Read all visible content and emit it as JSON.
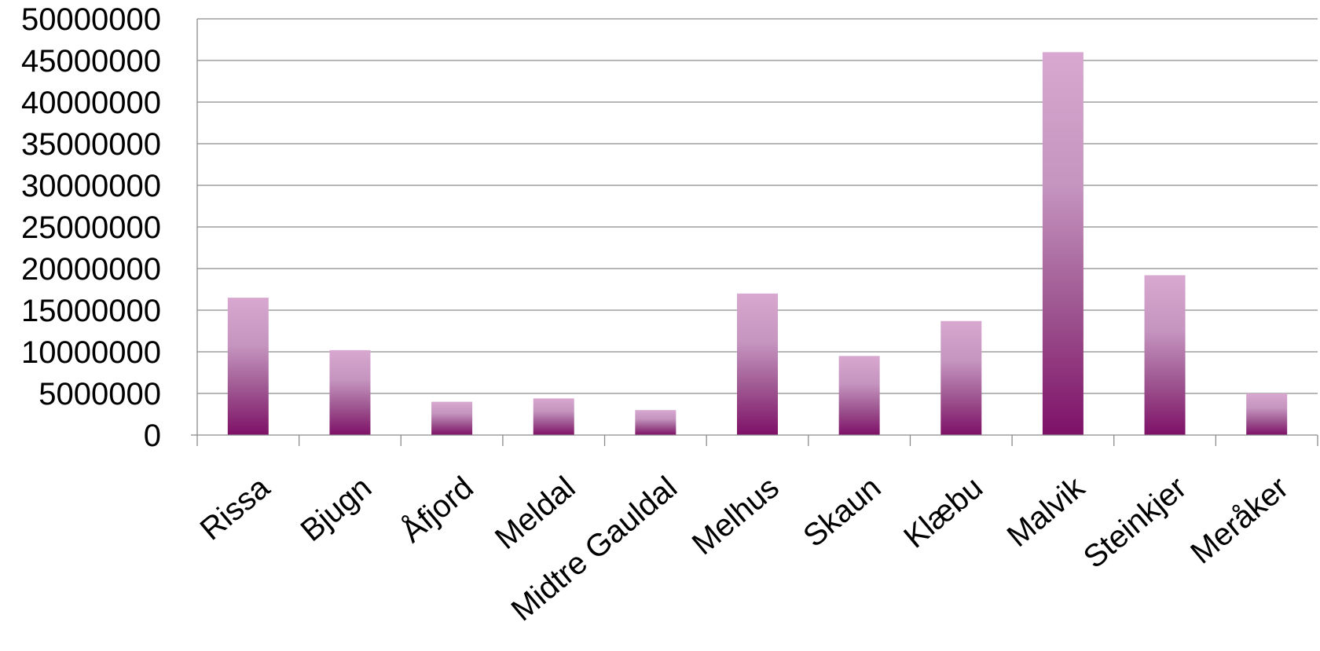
{
  "chart_data": {
    "type": "bar",
    "title": "",
    "xlabel": "",
    "ylabel": "",
    "categories": [
      "Rissa",
      "Bjugn",
      "Åfjord",
      "Meldal",
      "Midtre Gauldal",
      "Melhus",
      "Skaun",
      "Klæbu",
      "Malvik",
      "Steinkjer",
      "Meråker"
    ],
    "values": [
      16500000,
      10200000,
      4000000,
      4400000,
      3000000,
      17000000,
      9500000,
      13700000,
      46000000,
      19200000,
      5000000
    ],
    "ylim": [
      0,
      50000000
    ],
    "yticks": [
      "0",
      "5000000",
      "10000000",
      "15000000",
      "20000000",
      "25000000",
      "30000000",
      "35000000",
      "40000000",
      "45000000",
      "50000000"
    ],
    "grid": true,
    "legend": "none",
    "colors": {
      "bar_top": "#d8a8d0",
      "bar_bottom": "#7e1067",
      "gridline": "#8c8c8c",
      "axis": "#8c8c8c"
    }
  }
}
